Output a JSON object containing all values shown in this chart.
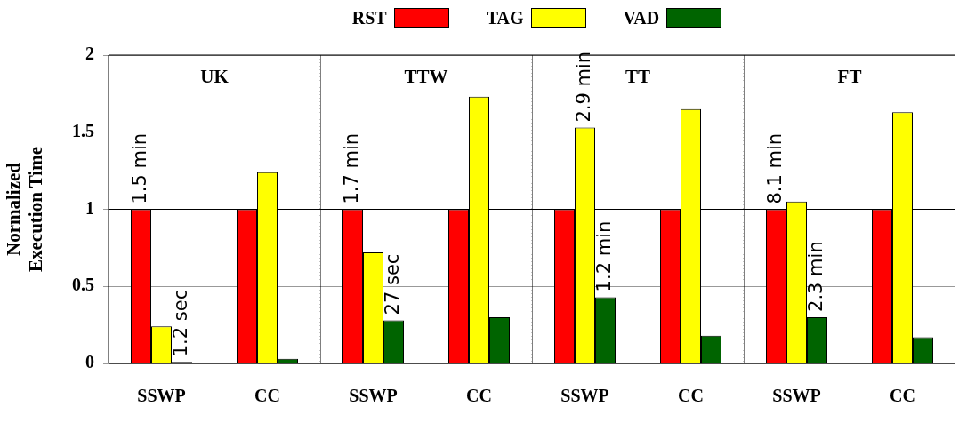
{
  "chart_data": [
    {
      "type": "bar",
      "title": "UK",
      "ylabel": "Normalized\nExecution Time",
      "categories": [
        "SSWP",
        "CC"
      ],
      "ylim": [
        0,
        2
      ],
      "yticks": [
        0,
        0.5,
        1,
        1.5,
        2
      ],
      "grid": "y",
      "legend": "top",
      "ref_lines": [
        {
          "axis": "y",
          "value": 1,
          "color": "#000000"
        }
      ],
      "series": [
        {
          "name": "RST",
          "color": "#ff0000",
          "values": [
            1,
            1
          ]
        },
        {
          "name": "TAG",
          "color": "#ffff00",
          "values": [
            0.24,
            1.24
          ]
        },
        {
          "name": "VAD",
          "color": "#006400",
          "values": [
            0.01,
            0.03
          ]
        }
      ],
      "annotations": [
        {
          "text": "1.5 min",
          "x": "SSWP",
          "y": 1
        },
        {
          "text": "1.2 sec",
          "x": "SSWP",
          "y": 0.01
        }
      ]
    },
    {
      "type": "bar",
      "title": "TTW",
      "categories": [
        "SSWP",
        "CC"
      ],
      "ylim": [
        0,
        2
      ],
      "yticks": [
        0,
        0.5,
        1,
        1.5,
        2
      ],
      "grid": "y",
      "tick_labels": "x",
      "ref_lines": [
        {
          "axis": "y",
          "value": 1,
          "color": "#000000"
        }
      ],
      "series": [
        {
          "color": "#ff0000",
          "values": [
            1,
            1
          ]
        },
        {
          "color": "#ffff00",
          "values": [
            0.72,
            1.73
          ]
        },
        {
          "color": "#006400",
          "values": [
            0.28,
            0.3
          ]
        }
      ],
      "annotations": [
        {
          "text": "1.7 min",
          "x": "SSWP",
          "y": 1
        },
        "27 sec"
      ]
    },
    {
      "type": "bar",
      "title": "TT",
      "categories": [
        "SSWP",
        "CC"
      ],
      "ylim": [
        0,
        2
      ],
      "yticks": [
        0,
        0.5,
        1,
        1.5,
        2
      ],
      "grid": "y",
      "tick_labels": "x",
      "ref_lines": [
        {
          "axis": "y",
          "value": 1,
          "color": "#000000"
        }
      ],
      "series": [
        {
          "color": "#ff0000",
          "values": [
            1,
            1
          ]
        },
        {
          "color": "#ffff00",
          "values": [
            1.53,
            1.65
          ]
        },
        {
          "color": "#006400",
          "values": [
            0.43,
            0.18
          ]
        }
      ],
      "annotations": [
        {
          "text": "2.9 min",
          "x": "SSWP",
          "y": 1.53
        },
        "1.2 min"
      ]
    },
    {
      "type": "bar",
      "title": "FT",
      "categories": [
        "SSWP",
        "CC"
      ],
      "ylim": [
        0,
        2
      ],
      "yticks": [
        0,
        0.5,
        1,
        1.5,
        2
      ],
      "grid": "y",
      "tick_labels": "x",
      "ref_lines": [
        {
          "axis": "y",
          "value": 1,
          "color": "#000000"
        }
      ],
      "series": [
        {
          "color": "#ff0000",
          "values": [
            1,
            1
          ]
        },
        {
          "color": "#ffff00",
          "values": [
            1.05,
            1.63
          ]
        },
        {
          "color": "#006400",
          "values": [
            0.3,
            0.17
          ]
        }
      ],
      "annotations": [
        {
          "text": "8.1 min",
          "x": "SSWP",
          "y": 1
        },
        "2.3 min"
      ]
    }
  ]
}
